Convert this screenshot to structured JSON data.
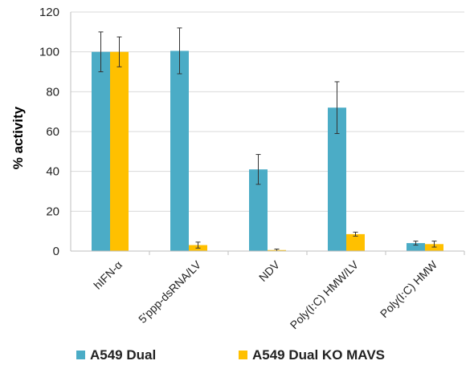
{
  "chart_data": {
    "type": "bar",
    "categories": [
      "hIFN-α",
      "5'ppp-dsRNA/LV",
      "NDV",
      "Poly(I:C) HMW/LV",
      "Poly(I:C) HMW"
    ],
    "series": [
      {
        "name": "A549 Dual",
        "color": "#4bacc6",
        "values": [
          100,
          100.5,
          41,
          72,
          4
        ],
        "errors": [
          10,
          11.5,
          7.5,
          13,
          1
        ]
      },
      {
        "name": "A549 Dual KO MAVS",
        "color": "#ffc000",
        "values": [
          100,
          3,
          0.5,
          8.5,
          3.5
        ],
        "errors": [
          7.5,
          1.5,
          0.5,
          1,
          1.5
        ]
      }
    ],
    "ylabel": "% activity",
    "ylim": [
      0,
      120
    ],
    "yticks": [
      0,
      20,
      40,
      60,
      80,
      100,
      120
    ],
    "grid": true,
    "legend_position": "bottom"
  }
}
